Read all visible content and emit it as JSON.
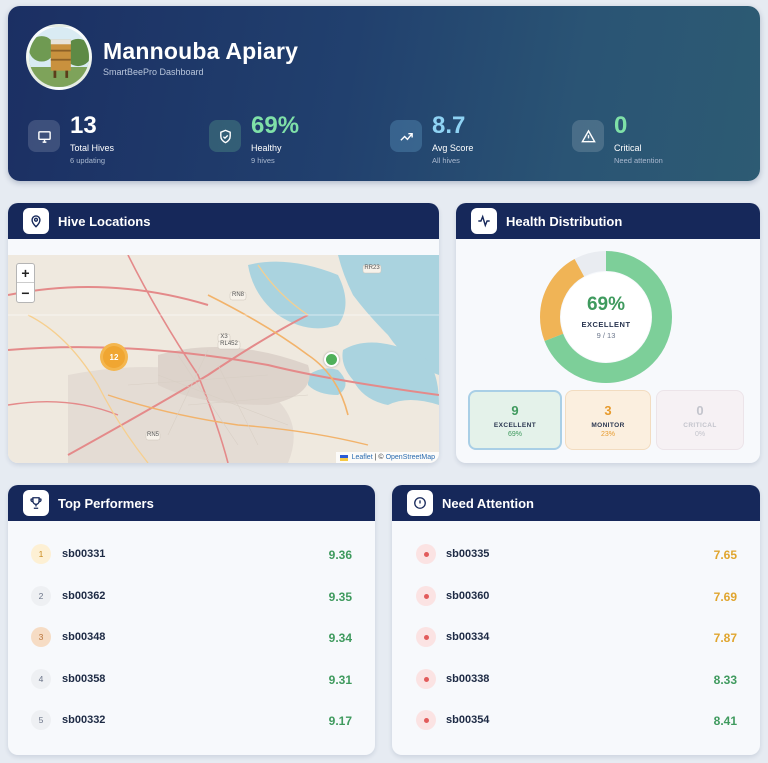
{
  "header": {
    "title": "Mannouba Apiary",
    "subtitle": "SmartBeePro Dashboard",
    "stats": [
      {
        "value": "13",
        "label": "Total Hives",
        "sub": "6 updating",
        "icon": "monitor-icon",
        "value_color": "#ffffff"
      },
      {
        "value": "69%",
        "label": "Healthy",
        "sub": "9 hives",
        "icon": "shield-check-icon",
        "value_color": "#7fe0a8"
      },
      {
        "value": "8.7",
        "label": "Avg Score",
        "sub": "All hives",
        "icon": "trending-up-icon",
        "value_color": "#8fd3f4"
      },
      {
        "value": "0",
        "label": "Critical",
        "sub": "Need attention",
        "icon": "alert-triangle-icon",
        "value_color": "#7fe0a8"
      }
    ]
  },
  "map_card": {
    "title": "Hive Locations",
    "zoom_in": "+",
    "zoom_out": "−",
    "cluster_count": "12",
    "attribution_leaflet": "Leaflet",
    "attribution_sep": "| ©",
    "attribution_osm": "OpenStreetMap",
    "labels": [
      "RR23",
      "RN8",
      "X3",
      "RL452",
      "RN5"
    ]
  },
  "health_card": {
    "title": "Health Distribution",
    "percent": "69%",
    "label": "EXCELLENT",
    "count": "9 / 13",
    "distribution": [
      {
        "value": "9",
        "label": "EXCELLENT",
        "percent": "69%",
        "fraction": 0.69,
        "color": "#3f9a5e"
      },
      {
        "value": "3",
        "label": "MONITOR",
        "percent": "23%",
        "fraction": 0.23,
        "color": "#e79b2d"
      },
      {
        "value": "0",
        "label": "CRITICAL",
        "percent": "0%",
        "fraction": 0.0,
        "color": "#c9c9cf"
      }
    ],
    "colors": {
      "excellent": "#7dcf99",
      "monitor": "#f0b456",
      "track": "#e9ecf1"
    }
  },
  "top_card": {
    "title": "Top Performers",
    "rows": [
      {
        "rank": "1",
        "id": "sb00331",
        "score": "9.36"
      },
      {
        "rank": "2",
        "id": "sb00362",
        "score": "9.35"
      },
      {
        "rank": "3",
        "id": "sb00348",
        "score": "9.34"
      },
      {
        "rank": "4",
        "id": "sb00358",
        "score": "9.31"
      },
      {
        "rank": "5",
        "id": "sb00332",
        "score": "9.17"
      }
    ]
  },
  "attention_card": {
    "title": "Need Attention",
    "rows": [
      {
        "id": "sb00335",
        "score": "7.65",
        "color": "#e0a52e"
      },
      {
        "id": "sb00360",
        "score": "7.69",
        "color": "#e0a52e"
      },
      {
        "id": "sb00334",
        "score": "7.87",
        "color": "#e0a52e"
      },
      {
        "id": "sb00338",
        "score": "8.33",
        "color": "#3f9a5e"
      },
      {
        "id": "sb00354",
        "score": "8.41",
        "color": "#3f9a5e"
      }
    ]
  }
}
